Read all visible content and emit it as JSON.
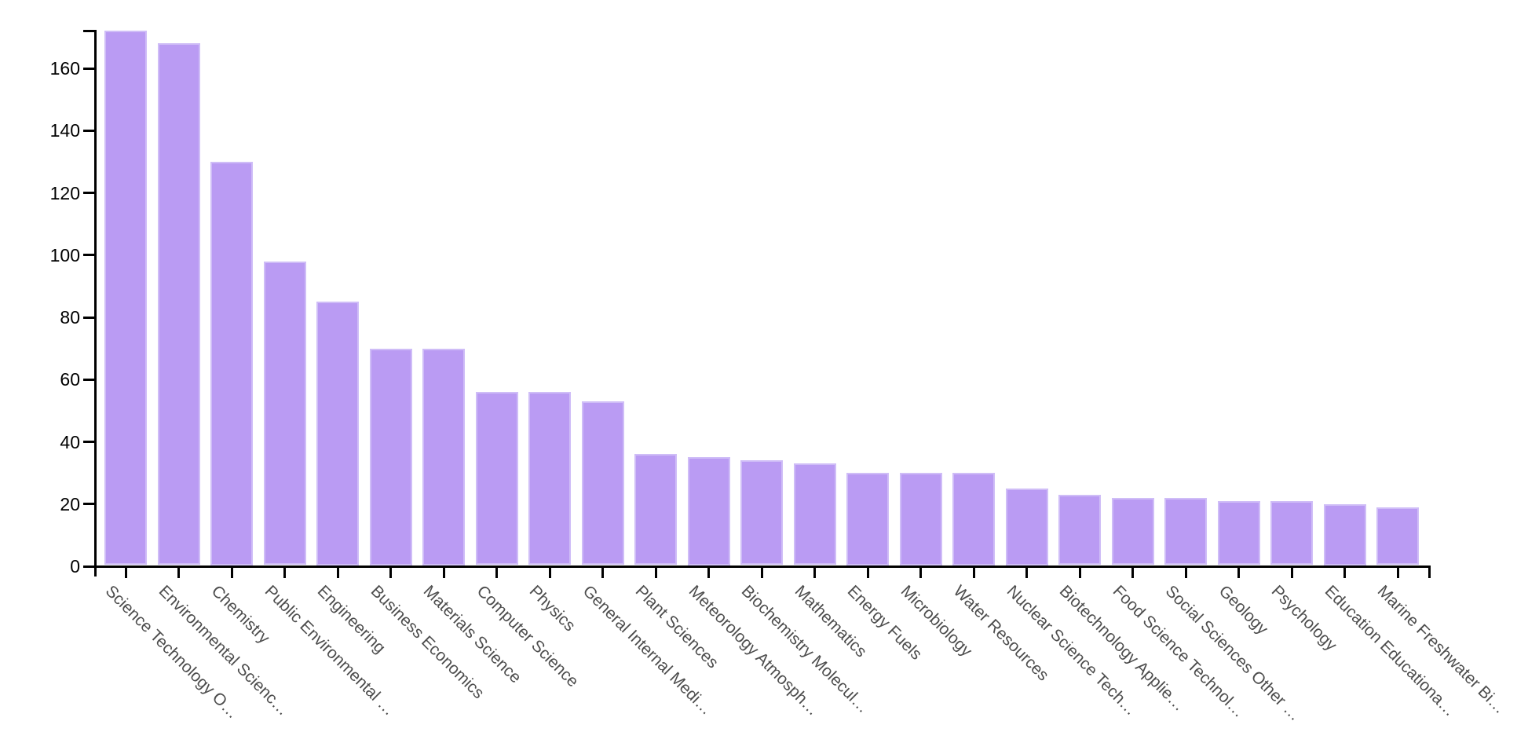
{
  "chart_data": {
    "type": "bar",
    "title": "",
    "xlabel": "",
    "ylabel": "",
    "categories": [
      "Science Technology O…",
      "Environmental Scienc…",
      "Chemistry",
      "Public Environmental …",
      "Engineering",
      "Business Economics",
      "Materials Science",
      "Computer Science",
      "Physics",
      "General Internal Medi…",
      "Plant Sciences",
      "Meteorology Atmosph…",
      "Biochemistry Molecul…",
      "Mathematics",
      "Energy Fuels",
      "Microbiology",
      "Water Resources",
      "Nuclear Science Tech…",
      "Biotechnology Applie…",
      "Food Science Technol…",
      "Social Sciences Other …",
      "Geology",
      "Psychology",
      "Education Educationa…",
      "Marine Freshwater Bi…"
    ],
    "values": [
      172,
      168,
      130,
      98,
      85,
      70,
      70,
      56,
      56,
      53,
      36,
      35,
      34,
      33,
      30,
      30,
      30,
      25,
      23,
      22,
      22,
      21,
      21,
      20,
      19
    ],
    "yticks": [
      0,
      20,
      40,
      60,
      80,
      100,
      120,
      140,
      160
    ],
    "ylim": [
      0,
      172
    ],
    "grid": false,
    "legend": false,
    "bar_color": "#ba9bf3",
    "bar_edge_color": "#cfbdf7",
    "axis_color": "#000000",
    "xtick_label_color": "#4d4d4d",
    "ytick_label_color": "#000000",
    "background": "#ffffff"
  }
}
